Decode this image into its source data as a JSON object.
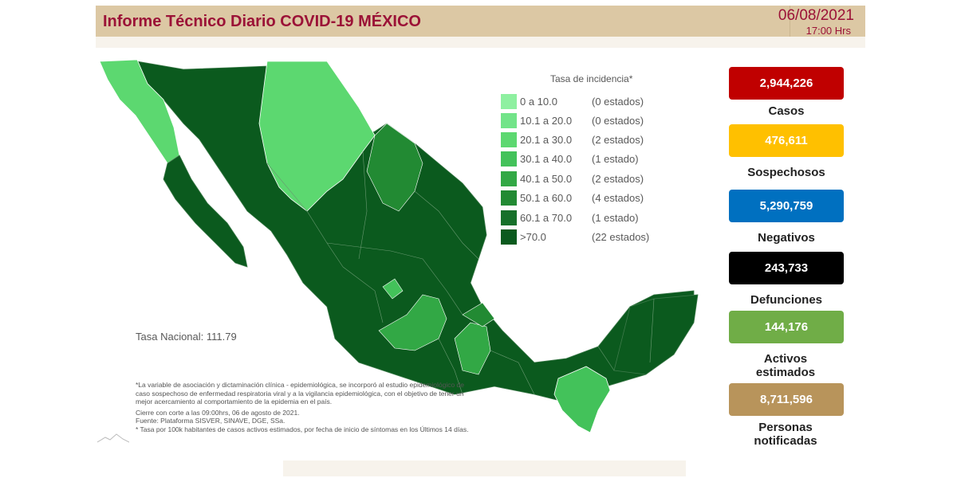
{
  "header": {
    "title": "Informe Técnico Diario COVID-19 MÉXICO",
    "date": "06/08/2021",
    "time": "17:00 Hrs"
  },
  "legend": {
    "title": "Tasa de incidencia*",
    "items": [
      {
        "range": "0   a  10.0",
        "count": "(0 estados)",
        "color": "#8ef0a0"
      },
      {
        "range": "10.1 a  20.0",
        "count": "(0 estados)",
        "color": "#72e489"
      },
      {
        "range": "20.1 a  30.0",
        "count": "(2 estados)",
        "color": "#5cd870"
      },
      {
        "range": "30.1 a  40.0",
        "count": "(1 estado)",
        "color": "#43c25a"
      },
      {
        "range": "40.1 a  50.0",
        "count": "(2 estados)",
        "color": "#32a845"
      },
      {
        "range": "50.1 a  60.0",
        "count": "(4 estados)",
        "color": "#228a33"
      },
      {
        "range": "60.1 a  70.0",
        "count": "(1 estado)",
        "color": "#16702a"
      },
      {
        "range": ">70.0",
        "count": "(22 estados)",
        "color": "#0b5a1e"
      }
    ]
  },
  "national_rate": "Tasa Nacional: 111.79",
  "footnotes": {
    "note": "*La variable de asociación y dictaminación clínica - epidemiológica, se incorporó al estudio epidemiológico de caso sospechoso de enfermedad respiratoria viral y a la vigilancia epidemiológica, con el objetivo de tener un mejor acercamiento al comportamiento de la epidemia en el país.",
    "cierre": "Cierre con corte a las 09:00hrs, 06 de agosto de 2021.",
    "fuente": "Fuente: Plataforma SISVER, SINAVE, DGE, SSa.",
    "tasa": "* Tasa por 100k habitantes de casos activos estimados, por fecha de inicio de síntomas en los Últimos 14 días."
  },
  "stats": [
    {
      "value": "2,944,226",
      "label": "Casos",
      "color": "#c00000"
    },
    {
      "value": "476,611",
      "label": "Sospechosos",
      "color": "#ffc000"
    },
    {
      "value": "5,290,759",
      "label": "Negativos",
      "color": "#0070c0"
    },
    {
      "value": "243,733",
      "label": "Defunciones",
      "color": "#000000"
    },
    {
      "value": "144,176",
      "label": "Activos estimados",
      "color": "#70ad47"
    },
    {
      "value": "8,711,596",
      "label": "Personas notificadas",
      "color": "#b8945b"
    }
  ]
}
